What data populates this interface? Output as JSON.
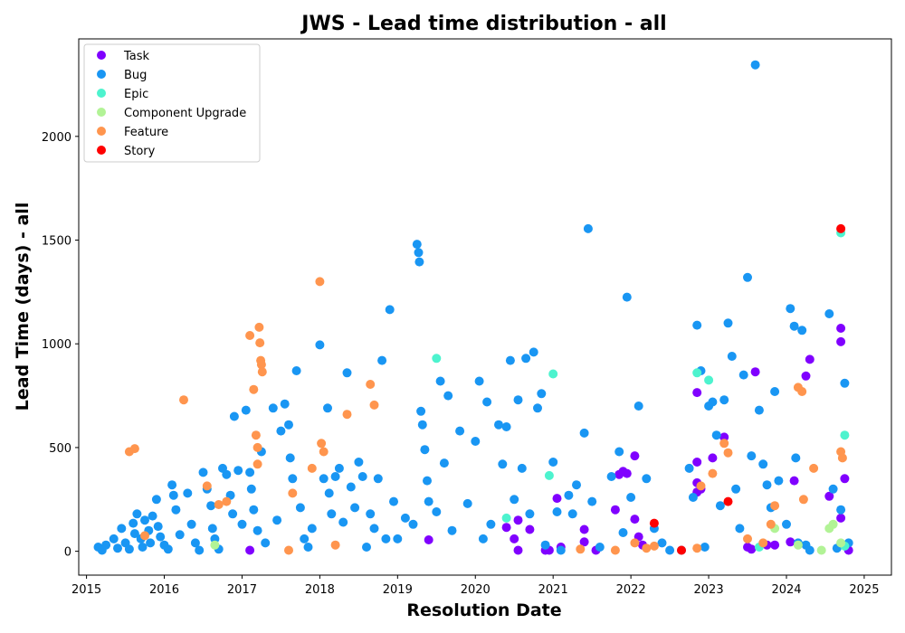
{
  "chart_data": {
    "type": "scatter",
    "title": "JWS - Lead time distribution - all",
    "xlabel": "Resolution Date",
    "ylabel": "Lead Time (days) - all",
    "xlim": [
      2014.9,
      2025.35
    ],
    "ylim": [
      -115,
      2470
    ],
    "x_ticks": [
      2015,
      2016,
      2017,
      2018,
      2019,
      2020,
      2021,
      2022,
      2023,
      2024,
      2025
    ],
    "y_ticks": [
      0,
      500,
      1000,
      1500,
      2000
    ],
    "grid": false,
    "legend_position": "top-left",
    "series": [
      {
        "name": "Task",
        "color": "#8000ff",
        "points": [
          [
            2017.1,
            5
          ],
          [
            2019.4,
            55
          ],
          [
            2020.4,
            115
          ],
          [
            2020.5,
            60
          ],
          [
            2020.55,
            150
          ],
          [
            2020.55,
            5
          ],
          [
            2020.7,
            105
          ],
          [
            2020.9,
            5
          ],
          [
            2020.95,
            5
          ],
          [
            2021.05,
            255
          ],
          [
            2021.1,
            20
          ],
          [
            2021.4,
            105
          ],
          [
            2021.4,
            45
          ],
          [
            2021.55,
            5
          ],
          [
            2021.8,
            200
          ],
          [
            2021.85,
            370
          ],
          [
            2021.9,
            385
          ],
          [
            2021.95,
            375
          ],
          [
            2022.05,
            460
          ],
          [
            2022.05,
            155
          ],
          [
            2022.1,
            70
          ],
          [
            2022.15,
            30
          ],
          [
            2022.85,
            765
          ],
          [
            2022.85,
            430
          ],
          [
            2022.85,
            330
          ],
          [
            2022.85,
            285
          ],
          [
            2022.9,
            300
          ],
          [
            2023.05,
            450
          ],
          [
            2023.2,
            550
          ],
          [
            2023.5,
            20
          ],
          [
            2023.55,
            10
          ],
          [
            2023.6,
            865
          ],
          [
            2023.75,
            30
          ],
          [
            2023.85,
            30
          ],
          [
            2024.05,
            45
          ],
          [
            2024.1,
            340
          ],
          [
            2024.25,
            845
          ],
          [
            2024.3,
            925
          ],
          [
            2024.55,
            265
          ],
          [
            2024.7,
            1075
          ],
          [
            2024.7,
            1010
          ],
          [
            2024.7,
            160
          ],
          [
            2024.75,
            350
          ],
          [
            2024.8,
            5
          ]
        ]
      },
      {
        "name": "Bug",
        "color": "#1996f3",
        "points": [
          [
            2015.15,
            20
          ],
          [
            2015.2,
            5
          ],
          [
            2015.25,
            30
          ],
          [
            2015.35,
            60
          ],
          [
            2015.4,
            15
          ],
          [
            2015.45,
            110
          ],
          [
            2015.5,
            40
          ],
          [
            2015.55,
            10
          ],
          [
            2015.6,
            135
          ],
          [
            2015.62,
            85
          ],
          [
            2015.65,
            180
          ],
          [
            2015.7,
            60
          ],
          [
            2015.72,
            20
          ],
          [
            2015.75,
            150
          ],
          [
            2015.8,
            100
          ],
          [
            2015.82,
            40
          ],
          [
            2015.85,
            170
          ],
          [
            2015.9,
            250
          ],
          [
            2015.92,
            120
          ],
          [
            2015.95,
            70
          ],
          [
            2016.0,
            30
          ],
          [
            2016.05,
            10
          ],
          [
            2016.1,
            320
          ],
          [
            2016.12,
            270
          ],
          [
            2016.15,
            200
          ],
          [
            2016.2,
            80
          ],
          [
            2016.3,
            280
          ],
          [
            2016.35,
            130
          ],
          [
            2016.4,
            40
          ],
          [
            2016.45,
            5
          ],
          [
            2016.5,
            380
          ],
          [
            2016.55,
            300
          ],
          [
            2016.6,
            220
          ],
          [
            2016.62,
            110
          ],
          [
            2016.65,
            60
          ],
          [
            2016.7,
            10
          ],
          [
            2016.75,
            400
          ],
          [
            2016.8,
            370
          ],
          [
            2016.85,
            270
          ],
          [
            2016.88,
            180
          ],
          [
            2016.9,
            650
          ],
          [
            2016.95,
            390
          ],
          [
            2017.0,
            130
          ],
          [
            2017.05,
            680
          ],
          [
            2017.1,
            380
          ],
          [
            2017.12,
            300
          ],
          [
            2017.15,
            200
          ],
          [
            2017.2,
            100
          ],
          [
            2017.25,
            480
          ],
          [
            2017.3,
            40
          ],
          [
            2017.4,
            690
          ],
          [
            2017.45,
            150
          ],
          [
            2017.5,
            580
          ],
          [
            2017.55,
            710
          ],
          [
            2017.6,
            610
          ],
          [
            2017.62,
            450
          ],
          [
            2017.65,
            350
          ],
          [
            2017.7,
            870
          ],
          [
            2017.75,
            210
          ],
          [
            2017.8,
            60
          ],
          [
            2017.85,
            20
          ],
          [
            2017.9,
            110
          ],
          [
            2018.0,
            995
          ],
          [
            2018.05,
            350
          ],
          [
            2018.1,
            690
          ],
          [
            2018.12,
            280
          ],
          [
            2018.15,
            180
          ],
          [
            2018.2,
            360
          ],
          [
            2018.25,
            400
          ],
          [
            2018.3,
            140
          ],
          [
            2018.35,
            860
          ],
          [
            2018.4,
            310
          ],
          [
            2018.45,
            210
          ],
          [
            2018.5,
            430
          ],
          [
            2018.55,
            360
          ],
          [
            2018.6,
            20
          ],
          [
            2018.65,
            180
          ],
          [
            2018.7,
            110
          ],
          [
            2018.75,
            350
          ],
          [
            2018.8,
            920
          ],
          [
            2018.85,
            60
          ],
          [
            2018.9,
            1165
          ],
          [
            2018.95,
            240
          ],
          [
            2019.0,
            60
          ],
          [
            2019.1,
            160
          ],
          [
            2019.2,
            130
          ],
          [
            2019.25,
            1480
          ],
          [
            2019.27,
            1440
          ],
          [
            2019.28,
            1395
          ],
          [
            2019.3,
            675
          ],
          [
            2019.32,
            610
          ],
          [
            2019.35,
            490
          ],
          [
            2019.38,
            340
          ],
          [
            2019.4,
            240
          ],
          [
            2019.5,
            190
          ],
          [
            2019.55,
            820
          ],
          [
            2019.6,
            425
          ],
          [
            2019.65,
            750
          ],
          [
            2019.7,
            100
          ],
          [
            2019.8,
            580
          ],
          [
            2019.9,
            230
          ],
          [
            2020.0,
            530
          ],
          [
            2020.05,
            820
          ],
          [
            2020.1,
            60
          ],
          [
            2020.15,
            720
          ],
          [
            2020.2,
            130
          ],
          [
            2020.3,
            610
          ],
          [
            2020.35,
            420
          ],
          [
            2020.4,
            600
          ],
          [
            2020.45,
            920
          ],
          [
            2020.5,
            250
          ],
          [
            2020.55,
            730
          ],
          [
            2020.6,
            400
          ],
          [
            2020.65,
            930
          ],
          [
            2020.7,
            180
          ],
          [
            2020.75,
            960
          ],
          [
            2020.8,
            690
          ],
          [
            2020.85,
            760
          ],
          [
            2020.9,
            30
          ],
          [
            2021.0,
            430
          ],
          [
            2021.05,
            190
          ],
          [
            2021.1,
            5
          ],
          [
            2021.2,
            270
          ],
          [
            2021.25,
            180
          ],
          [
            2021.3,
            320
          ],
          [
            2021.4,
            570
          ],
          [
            2021.45,
            1555
          ],
          [
            2021.5,
            240
          ],
          [
            2021.6,
            20
          ],
          [
            2021.75,
            360
          ],
          [
            2021.85,
            480
          ],
          [
            2021.9,
            90
          ],
          [
            2021.95,
            1225
          ],
          [
            2022.0,
            260
          ],
          [
            2022.1,
            700
          ],
          [
            2022.2,
            350
          ],
          [
            2022.3,
            110
          ],
          [
            2022.4,
            40
          ],
          [
            2022.5,
            5
          ],
          [
            2022.65,
            5
          ],
          [
            2022.75,
            400
          ],
          [
            2022.8,
            260
          ],
          [
            2022.85,
            1090
          ],
          [
            2022.9,
            870
          ],
          [
            2022.95,
            20
          ],
          [
            2023.0,
            700
          ],
          [
            2023.05,
            720
          ],
          [
            2023.1,
            560
          ],
          [
            2023.15,
            220
          ],
          [
            2023.2,
            730
          ],
          [
            2023.25,
            1100
          ],
          [
            2023.3,
            940
          ],
          [
            2023.35,
            300
          ],
          [
            2023.4,
            110
          ],
          [
            2023.45,
            850
          ],
          [
            2023.5,
            1320
          ],
          [
            2023.55,
            460
          ],
          [
            2023.6,
            2345
          ],
          [
            2023.65,
            680
          ],
          [
            2023.7,
            420
          ],
          [
            2023.75,
            320
          ],
          [
            2023.8,
            210
          ],
          [
            2023.85,
            770
          ],
          [
            2023.9,
            340
          ],
          [
            2024.0,
            130
          ],
          [
            2024.05,
            1170
          ],
          [
            2024.1,
            1085
          ],
          [
            2024.12,
            450
          ],
          [
            2024.15,
            40
          ],
          [
            2024.2,
            1065
          ],
          [
            2024.25,
            30
          ],
          [
            2024.3,
            5
          ],
          [
            2024.55,
            1145
          ],
          [
            2024.6,
            300
          ],
          [
            2024.65,
            15
          ],
          [
            2024.7,
            200
          ],
          [
            2024.75,
            810
          ],
          [
            2024.8,
            40
          ]
        ]
      },
      {
        "name": "Epic",
        "color": "#4df3ce",
        "points": [
          [
            2019.5,
            930
          ],
          [
            2020.4,
            160
          ],
          [
            2020.95,
            365
          ],
          [
            2021.0,
            855
          ],
          [
            2022.85,
            860
          ],
          [
            2023.0,
            825
          ],
          [
            2023.65,
            20
          ],
          [
            2024.7,
            1535
          ],
          [
            2024.75,
            560
          ],
          [
            2024.75,
            25
          ]
        ]
      },
      {
        "name": "Component Upgrade",
        "color": "#b2f396",
        "points": [
          [
            2016.65,
            30
          ],
          [
            2023.85,
            110
          ],
          [
            2024.15,
            30
          ],
          [
            2024.45,
            5
          ],
          [
            2024.55,
            110
          ],
          [
            2024.6,
            130
          ],
          [
            2024.7,
            40
          ]
        ]
      },
      {
        "name": "Feature",
        "color": "#ff954e",
        "points": [
          [
            2015.55,
            480
          ],
          [
            2015.62,
            495
          ],
          [
            2015.75,
            75
          ],
          [
            2016.25,
            730
          ],
          [
            2016.55,
            315
          ],
          [
            2016.7,
            225
          ],
          [
            2016.8,
            240
          ],
          [
            2017.1,
            1040
          ],
          [
            2017.15,
            780
          ],
          [
            2017.18,
            560
          ],
          [
            2017.2,
            500
          ],
          [
            2017.22,
            1080
          ],
          [
            2017.23,
            1005
          ],
          [
            2017.24,
            920
          ],
          [
            2017.25,
            900
          ],
          [
            2017.26,
            865
          ],
          [
            2017.2,
            420
          ],
          [
            2017.6,
            5
          ],
          [
            2017.65,
            280
          ],
          [
            2017.9,
            400
          ],
          [
            2018.0,
            1300
          ],
          [
            2018.02,
            520
          ],
          [
            2018.05,
            480
          ],
          [
            2018.2,
            30
          ],
          [
            2018.35,
            660
          ],
          [
            2018.65,
            805
          ],
          [
            2018.7,
            705
          ],
          [
            2021.35,
            10
          ],
          [
            2021.8,
            5
          ],
          [
            2022.05,
            40
          ],
          [
            2022.2,
            15
          ],
          [
            2022.3,
            25
          ],
          [
            2022.85,
            15
          ],
          [
            2022.9,
            315
          ],
          [
            2023.05,
            375
          ],
          [
            2023.2,
            520
          ],
          [
            2023.25,
            475
          ],
          [
            2023.5,
            60
          ],
          [
            2023.7,
            40
          ],
          [
            2023.8,
            130
          ],
          [
            2023.85,
            220
          ],
          [
            2024.15,
            790
          ],
          [
            2024.2,
            770
          ],
          [
            2024.22,
            250
          ],
          [
            2024.35,
            400
          ],
          [
            2024.7,
            480
          ],
          [
            2024.72,
            450
          ]
        ]
      },
      {
        "name": "Story",
        "color": "#ff0000",
        "points": [
          [
            2022.3,
            135
          ],
          [
            2022.65,
            5
          ],
          [
            2023.25,
            240
          ],
          [
            2024.7,
            1555
          ]
        ]
      }
    ]
  }
}
